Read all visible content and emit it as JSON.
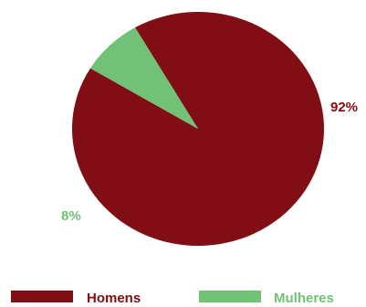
{
  "chart_data": {
    "type": "pie",
    "title": "",
    "legend_position": "bottom",
    "slices": [
      {
        "name": "Homens",
        "value": 92,
        "label": "92%",
        "color": "#800e14"
      },
      {
        "name": "Mulheres",
        "value": 8,
        "label": "8%",
        "color": "#71c177"
      }
    ]
  }
}
